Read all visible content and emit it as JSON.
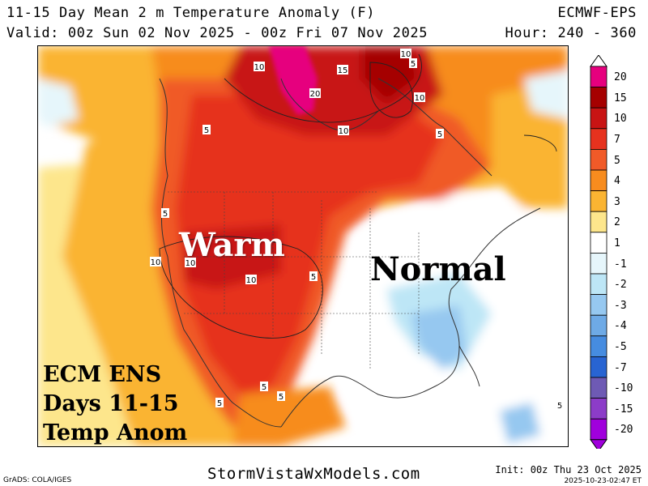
{
  "header": {
    "title": "11-15 Day Mean 2 m Temperature Anomaly (F)",
    "model": "ECMWF-EPS",
    "valid": "Valid: 00z Sun 02 Nov 2025 - 00z Fri 07 Nov 2025",
    "hours": "Hour: 240 - 360"
  },
  "annotations": {
    "warm": "Warm",
    "normal": "Normal",
    "box_line1": "ECM ENS",
    "box_line2": "Days 11-15",
    "box_line3": "Temp Anom"
  },
  "contour_labels": [
    "10",
    "15",
    "10",
    "5",
    "10",
    "20",
    "10",
    "5",
    "5",
    "5",
    "10",
    "10",
    "5",
    "10",
    "5",
    "5",
    "5",
    "5"
  ],
  "colorbar": {
    "labels": [
      "20",
      "15",
      "10",
      "7",
      "5",
      "4",
      "3",
      "2",
      "1",
      "-1",
      "-2",
      "-3",
      "-4",
      "-5",
      "-7",
      "-10",
      "-15",
      "-20"
    ],
    "colors": [
      "#e6007e",
      "#a50000",
      "#c81414",
      "#e6321e",
      "#f05a28",
      "#f78c1e",
      "#fab432",
      "#fde68c",
      "#ffffff",
      "#e6f6fb",
      "#bde6f6",
      "#96c8f0",
      "#6eaae6",
      "#468ce0",
      "#2864d2",
      "#6e5ab4",
      "#8c3cc8",
      "#a000dc"
    ],
    "top_arrow_color": "#ffffff",
    "bottom_arrow_color": "#a000dc"
  },
  "footer": {
    "grads": "GrADS: COLA/IGES",
    "site": "StormVistaWxModels.com",
    "init": "Init: 00z Thu 23 Oct 2025",
    "stamp": "2025-10-23-02:47 ET"
  }
}
